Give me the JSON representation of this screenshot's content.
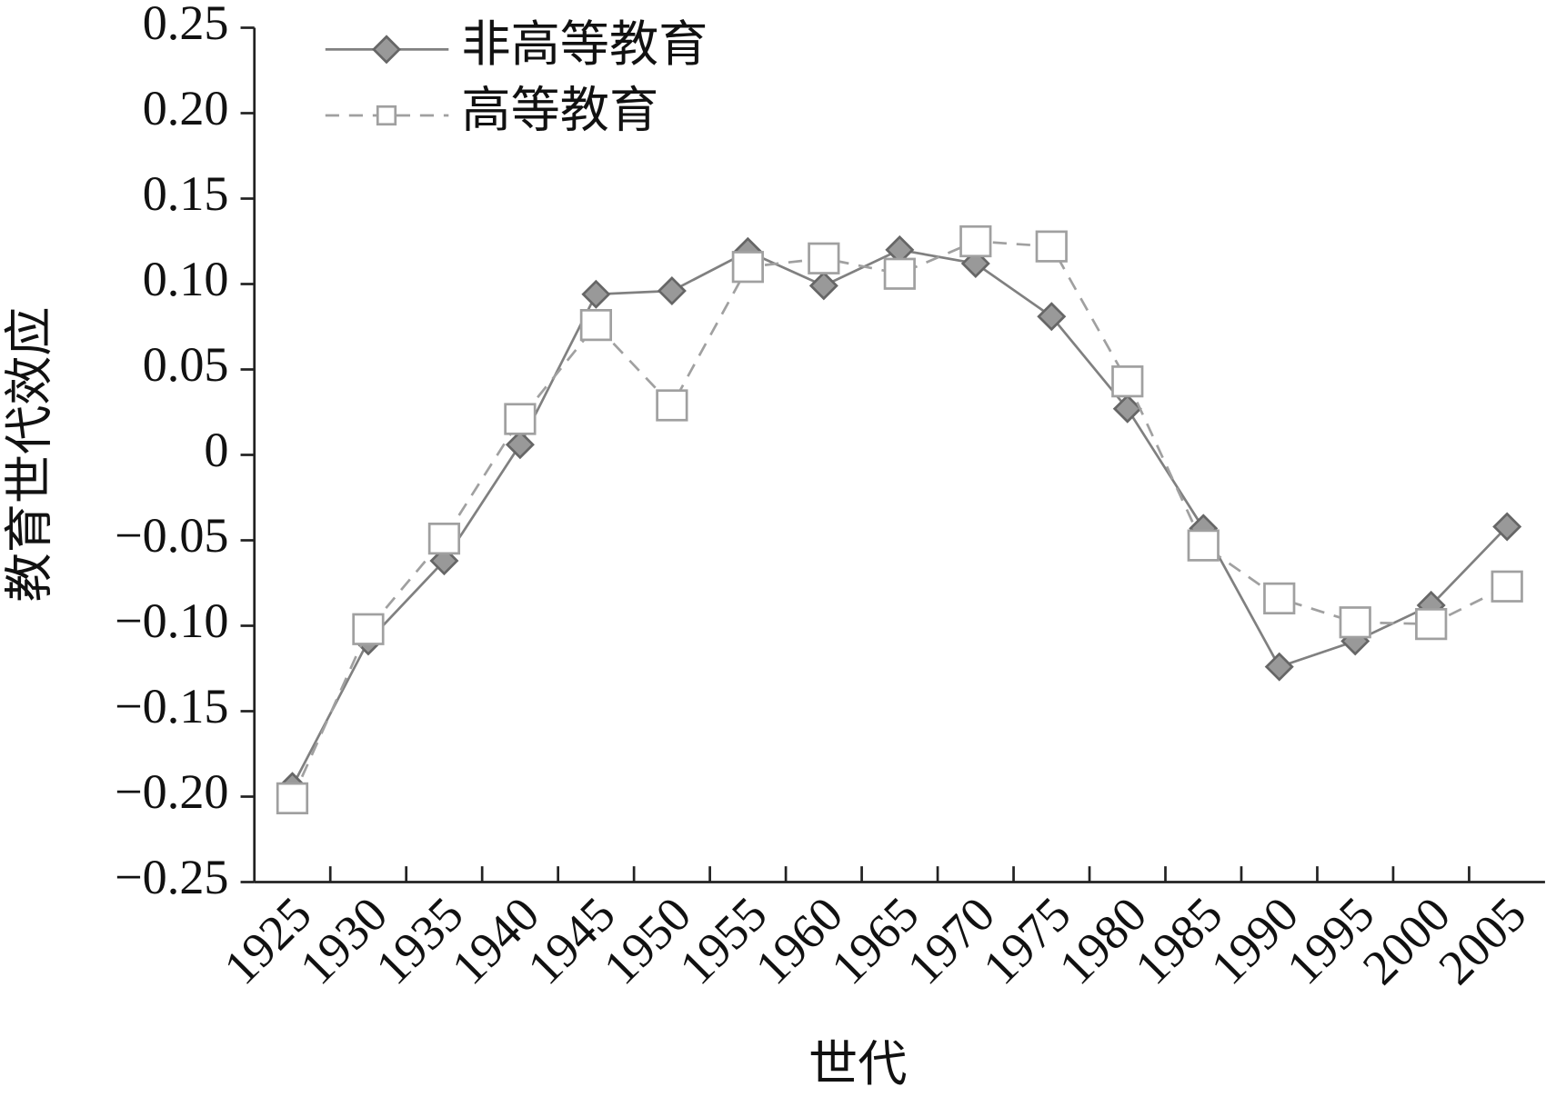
{
  "chart_data": {
    "type": "line",
    "xlabel": "世代",
    "ylabel": "教育世代效应",
    "categories": [
      "1925",
      "1930",
      "1935",
      "1940",
      "1945",
      "1950",
      "1955",
      "1960",
      "1965",
      "1970",
      "1975",
      "1980",
      "1985",
      "1990",
      "1995",
      "2000",
      "2005"
    ],
    "series": [
      {
        "name": "非高等教育",
        "color": "#808080",
        "marker": "diamond",
        "dash": false,
        "values": [
          -0.194,
          -0.109,
          -0.062,
          0.006,
          0.094,
          0.096,
          0.119,
          0.099,
          0.12,
          0.112,
          0.081,
          0.027,
          -0.043,
          -0.124,
          -0.109,
          -0.088,
          -0.042
        ]
      },
      {
        "name": "高等教育",
        "color": "#a0a0a0",
        "marker": "square",
        "dash": true,
        "values": [
          -0.201,
          -0.102,
          -0.049,
          0.021,
          0.076,
          0.029,
          0.11,
          0.115,
          0.106,
          0.125,
          0.122,
          0.043,
          -0.053,
          -0.084,
          -0.098,
          -0.099,
          -0.077
        ]
      }
    ],
    "ylim": [
      -0.25,
      0.25
    ],
    "yticks": [
      {
        "value": -0.25,
        "label": "−0.25"
      },
      {
        "value": -0.2,
        "label": "−0.20"
      },
      {
        "value": -0.15,
        "label": "−0.15"
      },
      {
        "value": -0.1,
        "label": "−0.10"
      },
      {
        "value": -0.05,
        "label": "−0.05"
      },
      0,
      0.05,
      {
        "value": 0.1,
        "label": "0.10"
      },
      0.15,
      {
        "value": 0.2,
        "label": "0.20"
      },
      0.25
    ],
    "legend": "upper left"
  }
}
